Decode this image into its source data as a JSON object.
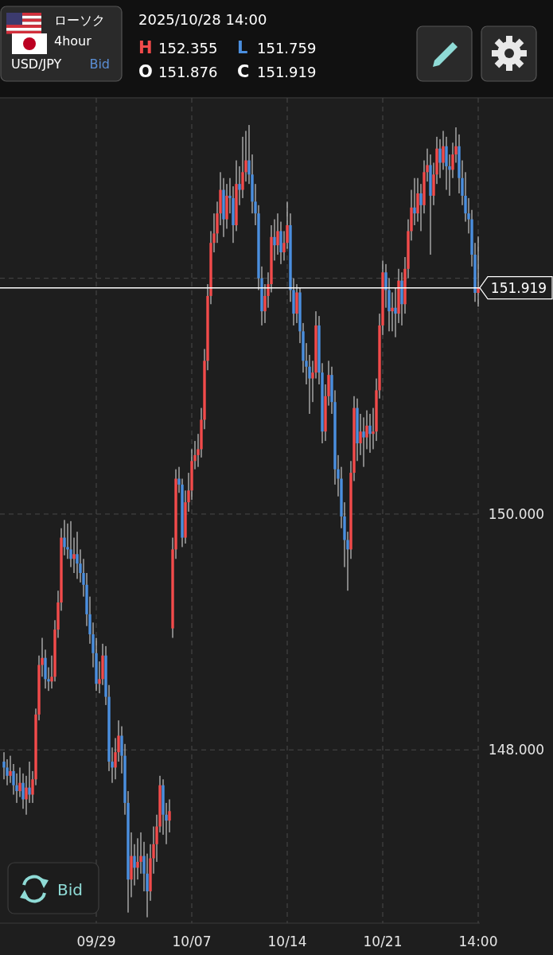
{
  "chart_data": {
    "type": "candlestick",
    "title": "USD/JPY",
    "subtitle": "2025/10/28 14:00",
    "annotations": [
      "ローソク",
      "4hour",
      "Bid",
      "H",
      "152.355",
      "L",
      "151.759",
      "O",
      "151.876",
      "C",
      "151.919",
      "Bid"
    ],
    "categories": [
      null,
      null,
      null,
      null,
      null,
      null,
      null,
      null,
      null,
      null,
      null,
      null,
      null,
      null,
      null,
      null,
      null,
      null,
      null,
      null,
      null,
      null,
      null,
      null,
      null,
      null,
      null,
      null,
      null,
      "09/29",
      null,
      null,
      null,
      null,
      null,
      null,
      null,
      null,
      null,
      null,
      null,
      null,
      null,
      null,
      null,
      null,
      null,
      null,
      null,
      null,
      null,
      null,
      null,
      null,
      null,
      null,
      null,
      null,
      null,
      "10/07",
      null,
      null,
      null,
      null,
      null,
      null,
      null,
      null,
      null,
      null,
      null,
      null,
      null,
      null,
      null,
      null,
      null,
      null,
      null,
      null,
      null,
      null,
      null,
      null,
      null,
      null,
      null,
      null,
      null,
      "10/14",
      null,
      null,
      null,
      null,
      null,
      null,
      null,
      null,
      null,
      null,
      null,
      null,
      null,
      null,
      null,
      null,
      null,
      null,
      null,
      null,
      null,
      null,
      null,
      null,
      null,
      null,
      null,
      null,
      null,
      "10/21",
      null,
      null,
      null,
      null,
      null,
      null,
      null,
      null,
      null,
      null,
      null,
      null,
      null,
      null,
      null,
      null,
      null,
      null,
      null,
      null,
      null,
      null,
      null,
      null,
      null,
      null,
      null,
      null,
      null,
      "14:00"
    ],
    "ohlc": [
      [
        147.9,
        147.98,
        147.75,
        147.85
      ],
      [
        147.85,
        147.92,
        147.7,
        147.78
      ],
      [
        147.78,
        147.95,
        147.72,
        147.82
      ],
      [
        147.82,
        147.88,
        147.62,
        147.7
      ],
      [
        147.7,
        147.8,
        147.55,
        147.65
      ],
      [
        147.65,
        147.85,
        147.6,
        147.72
      ],
      [
        147.72,
        147.8,
        147.5,
        147.58
      ],
      [
        147.58,
        147.78,
        147.45,
        147.68
      ],
      [
        147.68,
        147.9,
        147.55,
        147.62
      ],
      [
        147.62,
        147.82,
        147.55,
        147.75
      ],
      [
        147.75,
        148.35,
        147.7,
        148.3
      ],
      [
        148.3,
        148.8,
        148.25,
        148.72
      ],
      [
        148.72,
        148.95,
        148.62,
        148.78
      ],
      [
        148.78,
        148.85,
        148.52,
        148.6
      ],
      [
        148.6,
        148.7,
        148.5,
        148.58
      ],
      [
        148.58,
        148.8,
        148.52,
        148.62
      ],
      [
        148.62,
        149.1,
        148.58,
        149.02
      ],
      [
        149.02,
        149.35,
        148.95,
        149.25
      ],
      [
        149.25,
        149.88,
        149.18,
        149.8
      ],
      [
        149.8,
        149.95,
        149.65,
        149.72
      ],
      [
        149.72,
        149.92,
        149.62,
        149.7
      ],
      [
        149.7,
        149.94,
        149.55,
        149.62
      ],
      [
        149.62,
        149.8,
        149.5,
        149.66
      ],
      [
        149.66,
        149.85,
        149.45,
        149.58
      ],
      [
        149.58,
        149.7,
        149.42,
        149.5
      ],
      [
        149.5,
        149.62,
        149.3,
        149.4
      ],
      [
        149.4,
        149.5,
        149.05,
        149.15
      ],
      [
        149.15,
        149.3,
        148.9,
        148.98
      ],
      [
        148.98,
        149.08,
        148.7,
        148.82
      ],
      [
        148.82,
        148.95,
        148.5,
        148.56
      ],
      [
        148.56,
        148.75,
        148.48,
        148.6
      ],
      [
        148.6,
        148.9,
        148.55,
        148.8
      ],
      [
        148.8,
        148.88,
        148.38,
        148.45
      ],
      [
        148.45,
        148.55,
        147.82,
        147.9
      ],
      [
        147.9,
        148.02,
        147.72,
        147.85
      ],
      [
        147.85,
        148.1,
        147.75,
        147.98
      ],
      [
        147.98,
        148.25,
        147.9,
        148.12
      ],
      [
        148.12,
        148.2,
        147.8,
        147.95
      ],
      [
        147.95,
        148.05,
        147.45,
        147.55
      ],
      [
        147.55,
        147.65,
        146.62,
        146.9
      ],
      [
        146.9,
        147.3,
        146.75,
        147.1
      ],
      [
        147.1,
        147.2,
        146.85,
        147.0
      ],
      [
        147.0,
        147.25,
        146.9,
        147.05
      ],
      [
        147.05,
        147.3,
        146.95,
        147.1
      ],
      [
        147.1,
        147.22,
        146.8,
        146.95
      ],
      [
        146.95,
        147.12,
        146.58,
        146.8
      ],
      [
        146.8,
        147.2,
        146.72,
        147.08
      ],
      [
        147.08,
        147.35,
        146.95,
        147.2
      ],
      [
        147.2,
        147.45,
        147.05,
        147.35
      ],
      [
        147.35,
        147.78,
        147.3,
        147.7
      ],
      [
        147.7,
        147.75,
        147.28,
        147.45
      ],
      [
        147.45,
        147.55,
        147.2,
        147.4
      ],
      [
        147.4,
        147.58,
        147.3,
        147.48
      ],
      [
        149.03,
        149.8,
        148.95,
        149.7
      ],
      [
        149.7,
        150.38,
        149.62,
        150.3
      ],
      [
        150.3,
        150.4,
        150.18,
        150.25
      ],
      [
        150.25,
        150.3,
        149.72,
        149.8
      ],
      [
        149.8,
        150.2,
        149.75,
        150.1
      ],
      [
        150.1,
        150.35,
        150.02,
        150.2
      ],
      [
        150.2,
        150.55,
        150.12,
        150.45
      ],
      [
        150.45,
        150.62,
        150.38,
        150.5
      ],
      [
        150.5,
        150.68,
        150.4,
        150.55
      ],
      [
        150.55,
        150.9,
        150.48,
        150.8
      ],
      [
        150.8,
        151.4,
        150.72,
        151.3
      ],
      [
        151.3,
        151.95,
        151.22,
        151.85
      ],
      [
        151.85,
        152.4,
        151.78,
        152.3
      ],
      [
        152.3,
        152.55,
        152.22,
        152.38
      ],
      [
        152.38,
        152.65,
        152.3,
        152.55
      ],
      [
        152.55,
        152.9,
        152.45,
        152.75
      ],
      [
        152.75,
        152.85,
        152.35,
        152.5
      ],
      [
        152.5,
        152.8,
        152.42,
        152.7
      ],
      [
        152.7,
        152.85,
        152.55,
        152.68
      ],
      [
        152.68,
        152.78,
        152.3,
        152.45
      ],
      [
        152.45,
        153.0,
        152.4,
        152.8
      ],
      [
        152.8,
        152.95,
        152.62,
        152.75
      ],
      [
        152.75,
        153.2,
        152.68,
        152.9
      ],
      [
        152.9,
        153.25,
        152.82,
        153.0
      ],
      [
        153.0,
        153.3,
        152.8,
        152.88
      ],
      [
        152.88,
        153.05,
        152.55,
        152.65
      ],
      [
        152.65,
        152.8,
        152.45,
        152.55
      ],
      [
        152.55,
        152.62,
        151.9,
        152.0
      ],
      [
        152.0,
        152.1,
        151.6,
        151.72
      ],
      [
        151.72,
        151.95,
        151.62,
        151.85
      ],
      [
        151.85,
        152.05,
        151.75,
        151.95
      ],
      [
        151.95,
        152.45,
        151.88,
        152.35
      ],
      [
        152.35,
        152.5,
        152.15,
        152.28
      ],
      [
        152.28,
        152.55,
        152.2,
        152.4
      ],
      [
        152.4,
        152.48,
        152.12,
        152.22
      ],
      [
        152.22,
        152.4,
        152.15,
        152.3
      ],
      [
        152.3,
        152.65,
        152.25,
        152.45
      ],
      [
        152.45,
        152.55,
        151.8,
        151.9
      ],
      [
        151.9,
        152.0,
        151.6,
        151.7
      ],
      [
        151.7,
        151.95,
        151.62,
        151.88
      ],
      [
        151.88,
        151.92,
        151.45,
        151.55
      ],
      [
        151.55,
        151.62,
        151.2,
        151.3
      ],
      [
        151.3,
        151.45,
        151.1,
        151.25
      ],
      [
        151.25,
        151.35,
        150.85,
        151.15
      ],
      [
        151.15,
        151.3,
        150.95,
        151.2
      ],
      [
        151.2,
        151.72,
        151.15,
        151.6
      ],
      [
        151.6,
        151.68,
        151.1,
        151.2
      ],
      [
        151.2,
        151.28,
        150.6,
        150.7
      ],
      [
        150.7,
        151.1,
        150.62,
        151.0
      ],
      [
        151.0,
        151.3,
        150.92,
        151.18
      ],
      [
        151.18,
        151.25,
        150.85,
        150.95
      ],
      [
        150.95,
        151.05,
        150.25,
        150.38
      ],
      [
        150.38,
        150.5,
        150.15,
        150.3
      ],
      [
        150.3,
        150.4,
        149.88,
        149.98
      ],
      [
        149.98,
        150.1,
        149.55,
        149.78
      ],
      [
        149.78,
        149.85,
        149.35,
        149.7
      ],
      [
        149.7,
        150.45,
        149.62,
        150.35
      ],
      [
        150.35,
        151.0,
        150.28,
        150.9
      ],
      [
        150.9,
        150.98,
        150.45,
        150.6
      ],
      [
        150.6,
        150.85,
        150.5,
        150.7
      ],
      [
        150.7,
        150.82,
        150.4,
        150.65
      ],
      [
        150.65,
        150.88,
        150.55,
        150.75
      ],
      [
        150.75,
        150.85,
        150.52,
        150.68
      ],
      [
        150.68,
        150.9,
        150.55,
        150.7
      ],
      [
        150.7,
        151.15,
        150.62,
        151.05
      ],
      [
        151.05,
        151.7,
        150.98,
        151.6
      ],
      [
        151.6,
        152.15,
        151.52,
        152.05
      ],
      [
        152.05,
        152.12,
        151.75,
        151.9
      ],
      [
        151.9,
        152.0,
        151.55,
        151.72
      ],
      [
        151.72,
        151.88,
        151.55,
        151.75
      ],
      [
        151.75,
        151.92,
        151.5,
        151.7
      ],
      [
        151.7,
        152.08,
        151.62,
        151.98
      ],
      [
        151.98,
        152.05,
        151.6,
        151.78
      ],
      [
        151.78,
        152.18,
        151.7,
        152.08
      ],
      [
        152.08,
        152.5,
        152.0,
        152.4
      ],
      [
        152.4,
        152.75,
        152.32,
        152.6
      ],
      [
        152.6,
        152.85,
        152.45,
        152.55
      ],
      [
        152.55,
        152.85,
        152.48,
        152.72
      ],
      [
        152.72,
        152.8,
        152.4,
        152.62
      ],
      [
        152.62,
        153.0,
        152.55,
        152.9
      ],
      [
        152.9,
        153.1,
        152.82,
        152.96
      ],
      [
        152.96,
        153.05,
        152.2,
        152.7
      ],
      [
        152.7,
        152.98,
        152.62,
        152.88
      ],
      [
        152.88,
        153.2,
        152.8,
        153.1
      ],
      [
        153.1,
        153.18,
        152.85,
        152.98
      ],
      [
        152.98,
        153.25,
        152.92,
        153.12
      ],
      [
        153.12,
        153.2,
        152.75,
        152.95
      ],
      [
        152.95,
        153.05,
        152.7,
        152.92
      ],
      [
        152.92,
        153.15,
        152.85,
        153.05
      ],
      [
        153.05,
        153.28,
        152.98,
        153.12
      ],
      [
        153.12,
        153.22,
        152.72,
        152.85
      ],
      [
        152.85,
        153.0,
        152.62,
        152.7
      ],
      [
        152.7,
        152.9,
        152.48,
        152.55
      ],
      [
        152.55,
        152.68,
        152.38,
        152.5
      ],
      [
        152.5,
        152.58,
        152.1,
        152.2
      ],
      [
        152.2,
        152.3,
        151.8,
        151.876
      ],
      [
        151.876,
        152.355,
        151.759,
        151.919
      ]
    ],
    "ylim": [
      146.53,
      153.53
    ],
    "yticks": [
      {
        "value": 148,
        "label": "148.000"
      },
      {
        "value": 150,
        "label": "150.000"
      },
      {
        "value": 152,
        "label": null
      }
    ],
    "grid": true,
    "ref_lines": [
      {
        "axis": "y",
        "value": 151.919,
        "label": "151.919",
        "color": "#ffffff"
      }
    ]
  }
}
